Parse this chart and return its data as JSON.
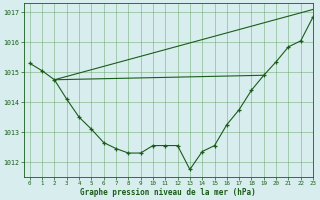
{
  "xlabel": "Graphe pression niveau de la mer (hPa)",
  "background_color": "#d8eeee",
  "line_color": "#1a5c1a",
  "grid_color": "#5a9a5a",
  "xlim": [
    -0.5,
    23
  ],
  "ylim": [
    1011.5,
    1017.3
  ],
  "yticks": [
    1012,
    1013,
    1014,
    1015,
    1016,
    1017
  ],
  "xticks": [
    0,
    1,
    2,
    3,
    4,
    5,
    6,
    7,
    8,
    9,
    10,
    11,
    12,
    13,
    14,
    15,
    16,
    17,
    18,
    19,
    20,
    21,
    22,
    23
  ],
  "line1": {
    "x": [
      0,
      1,
      2,
      3,
      4,
      5,
      6,
      7,
      8,
      9,
      10,
      11,
      12,
      13,
      14,
      15,
      16,
      17,
      18,
      19,
      20,
      21,
      22,
      23
    ],
    "y": [
      1015.3,
      1015.05,
      1014.75,
      1014.1,
      1013.5,
      1013.1,
      1012.65,
      1012.45,
      1012.3,
      1012.3,
      1012.55,
      1012.55,
      1012.55,
      1011.75,
      1012.35,
      1012.55,
      1013.25,
      1013.75,
      1014.4,
      1014.9,
      1015.35,
      1015.85,
      1016.05,
      1016.85
    ]
  },
  "line2": {
    "x": [
      2,
      19
    ],
    "y": [
      1014.75,
      1014.9
    ]
  },
  "line3": {
    "x": [
      2,
      23
    ],
    "y": [
      1014.75,
      1017.1
    ]
  }
}
